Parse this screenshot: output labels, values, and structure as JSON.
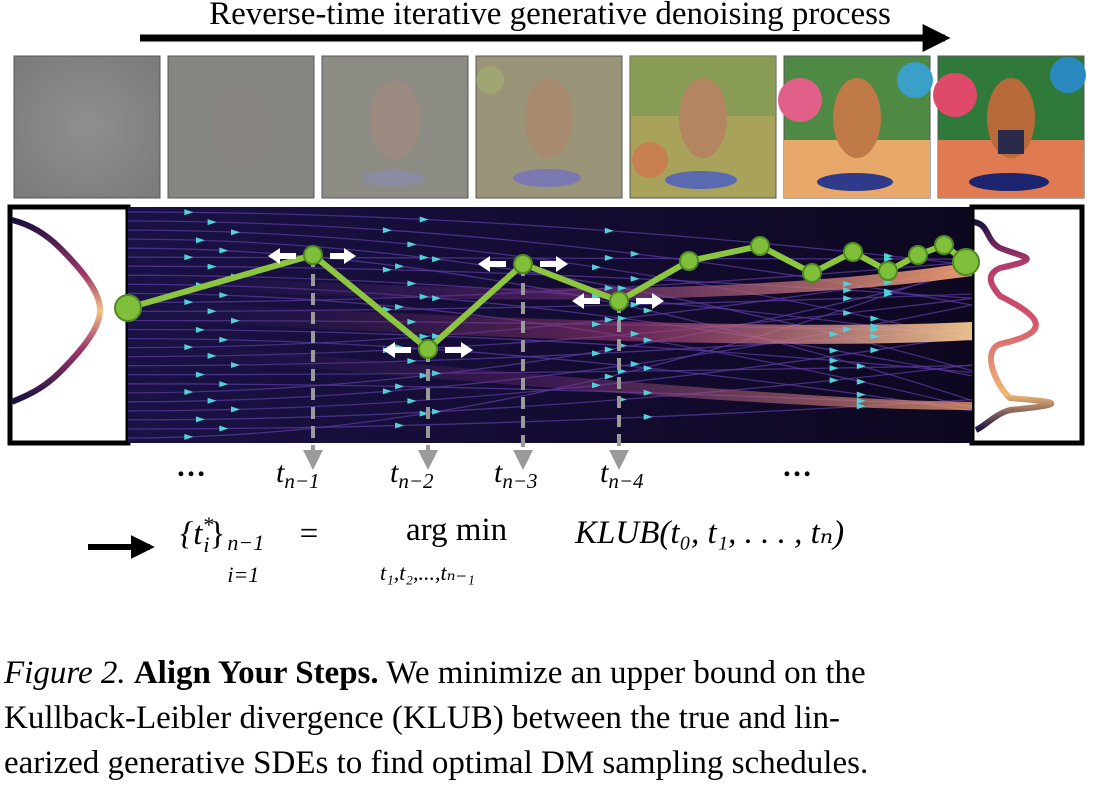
{
  "header": {
    "title": "Reverse-time iterative generative denoising process"
  },
  "timesteps": [
    {
      "base": "t",
      "sub": "n−1"
    },
    {
      "base": "t",
      "sub": "n−2"
    },
    {
      "base": "t",
      "sub": "n−3"
    },
    {
      "base": "t",
      "sub": "n−4"
    }
  ],
  "ellipsis": "…",
  "equation": {
    "lhs": "{t",
    "lhs_sup": "*",
    "lhs_sub": "i",
    "lhs_rest": "}",
    "lhs_range_sup": "n−1",
    "lhs_range_sub": "i=1",
    "equals": "=",
    "argmin": "arg min",
    "argmin_under": "t₁,t₂,...,tₙ₋₁",
    "rhs": "KLUB(t₀, t₁, . . . , tₙ)"
  },
  "caption": {
    "label": "Figure 2.",
    "title": "Align Your Steps.",
    "line1_rest": " We minimize an upper bound on the",
    "line2": "Kullback-Leibler divergence (KLUB) between the true and lin-",
    "line3": "earized generative SDEs to find optimal DM sampling schedules."
  },
  "colors": {
    "flow_bg": "#120a2e",
    "flow_line": "#5a3aa0",
    "arrow_head": "#4fd2d8",
    "path_green": "#8cc63f",
    "node_green": "#7fbf3a",
    "density_hot": "#f0b878",
    "density_mid": "#b43a6e",
    "density_cold": "#2a1f5e"
  }
}
